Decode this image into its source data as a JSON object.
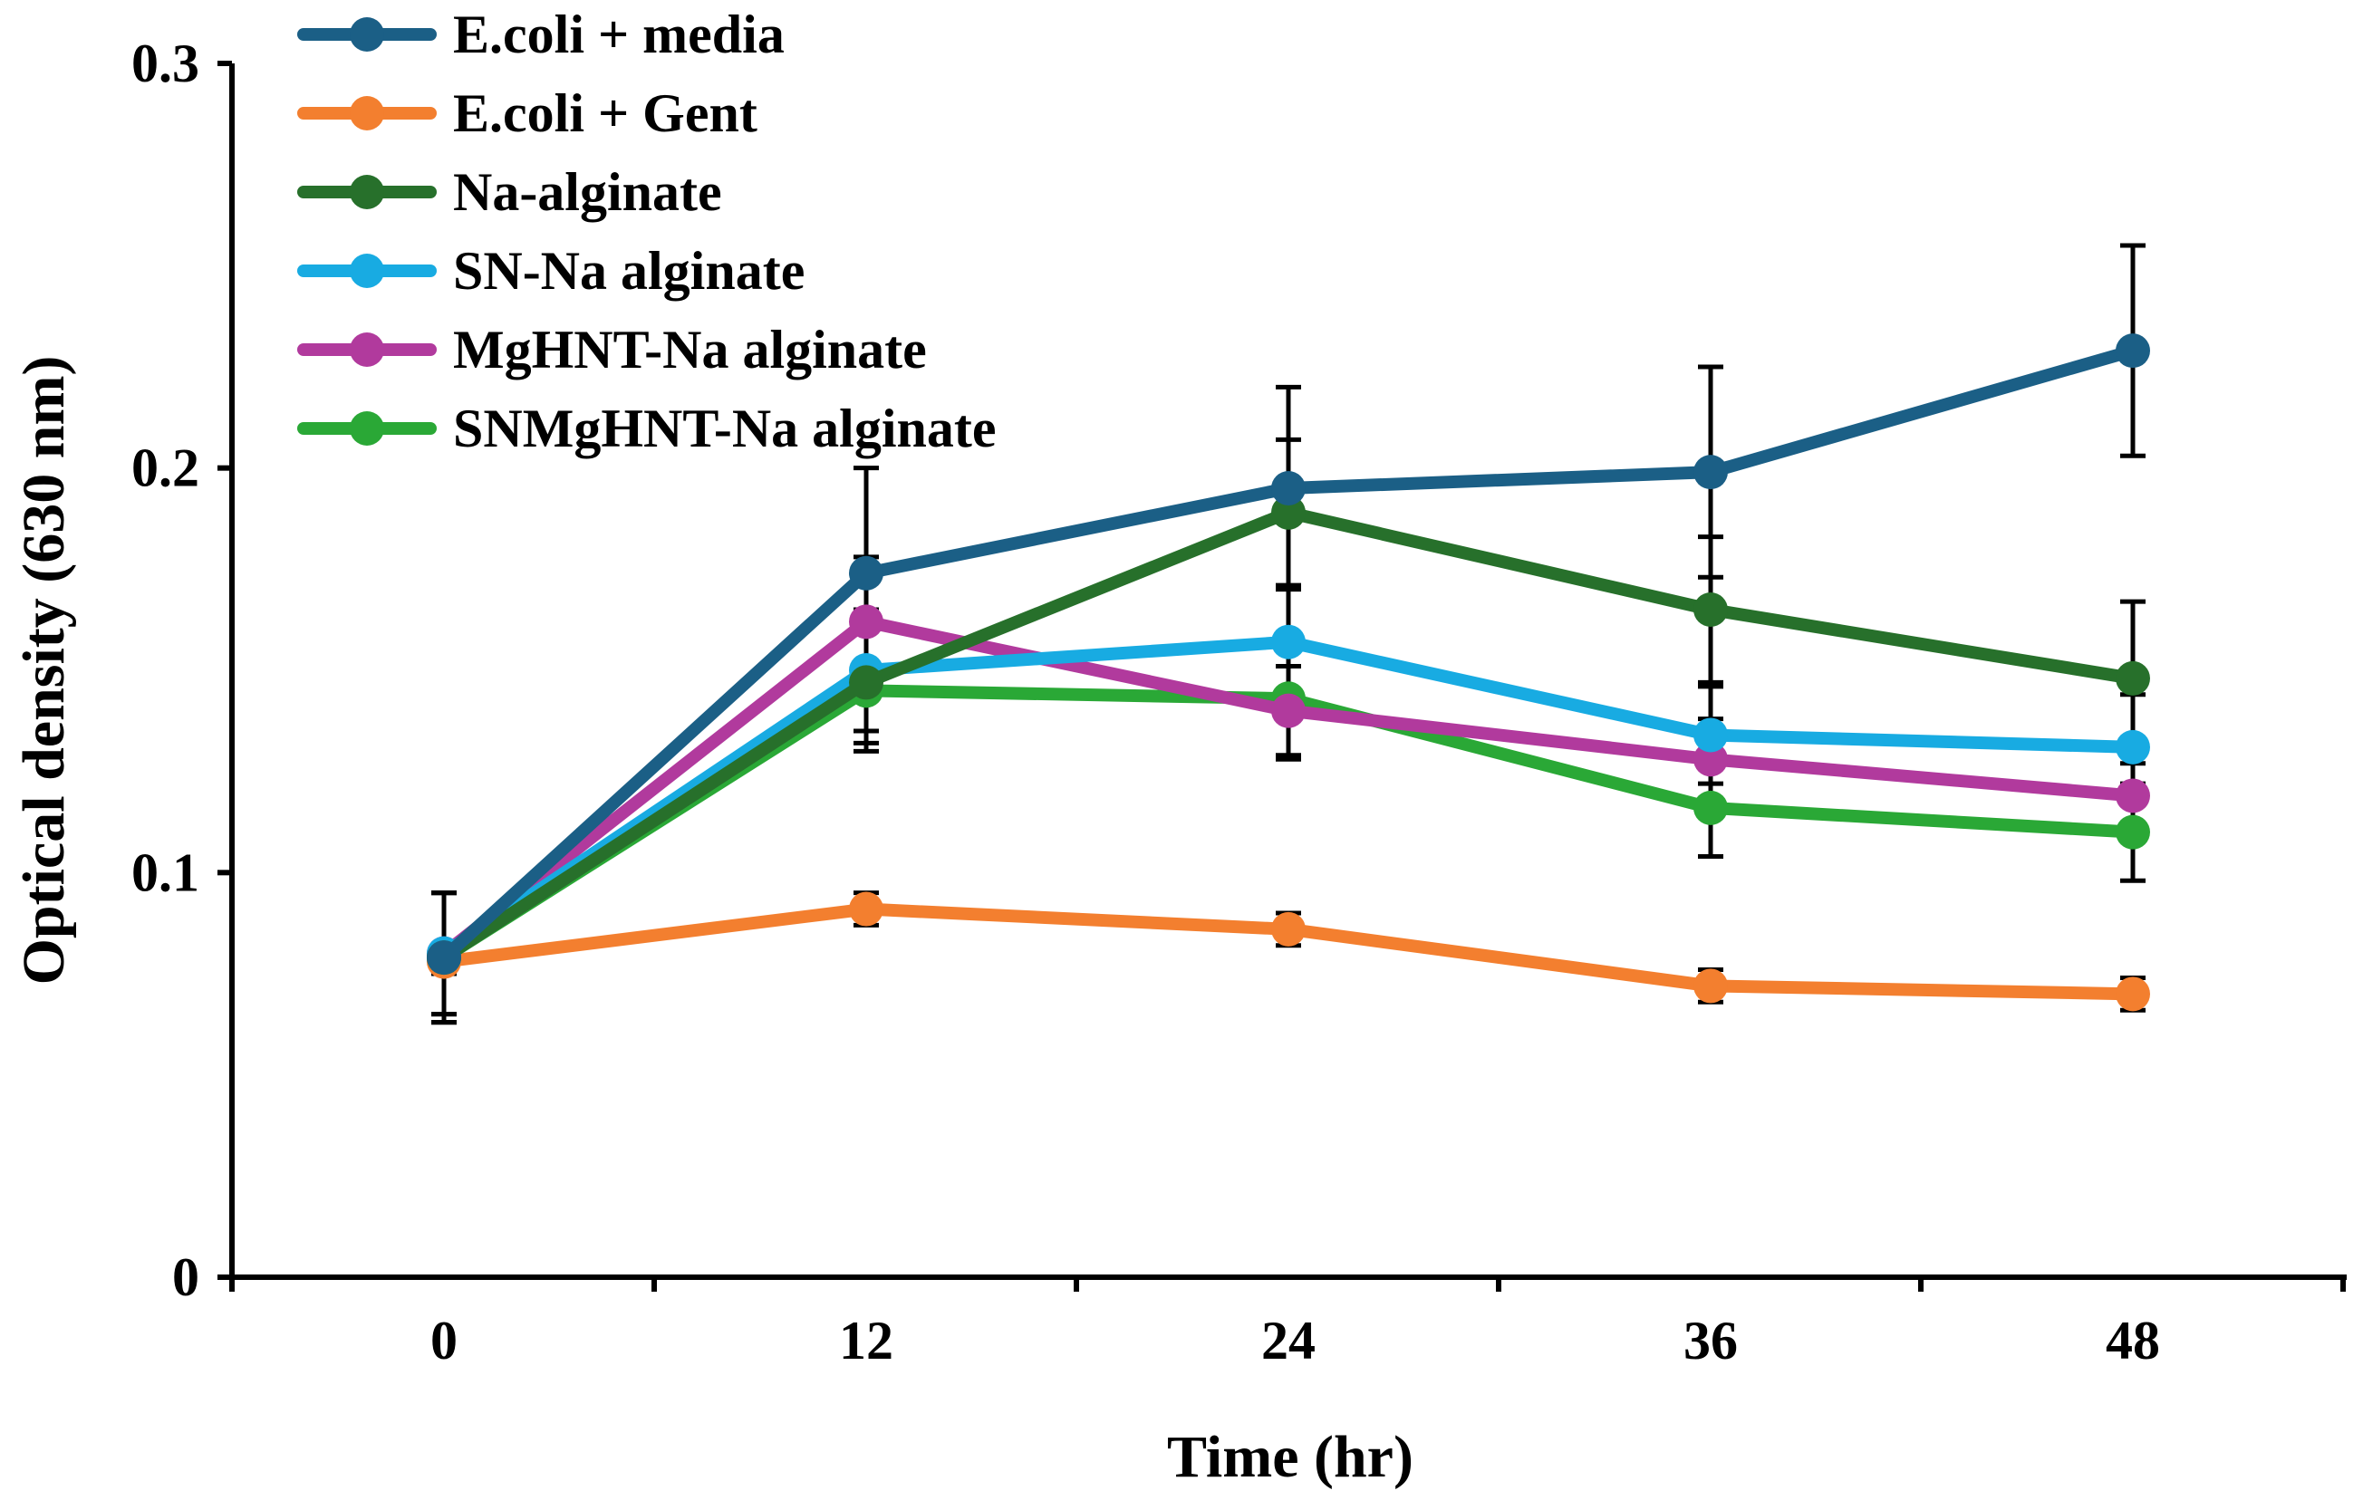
{
  "chart_data": {
    "type": "line",
    "title": "",
    "xlabel": "Time (hr)",
    "ylabel": "Optical density (630 nm)",
    "x": [
      0,
      12,
      24,
      36,
      48
    ],
    "x_tick_labels": [
      "0",
      "12",
      "24",
      "36",
      "48"
    ],
    "y_tick_labels": [
      "0",
      "0.1",
      "0.2",
      "0.3"
    ],
    "y_ticks": [
      0,
      0.1,
      0.2,
      0.3
    ],
    "ylim": [
      0,
      0.3
    ],
    "grid": false,
    "legend_position": "top-left",
    "series": [
      {
        "name": "E.coli + media",
        "color": "#1b5f86",
        "values": [
          0.079,
          0.174,
          0.195,
          0.199,
          0.229
        ],
        "errors": [
          0.016,
          0.026,
          0.025,
          0.026,
          0.026
        ]
      },
      {
        "name": "E.coli + Gent",
        "color": "#f37f2f",
        "values": [
          0.078,
          0.091,
          0.086,
          0.072,
          0.07
        ],
        "errors": [
          0.003,
          0.004,
          0.004,
          0.004,
          0.004
        ]
      },
      {
        "name": "Na-alginate",
        "color": "#27702b",
        "values": [
          0.079,
          0.147,
          0.189,
          0.165,
          0.148
        ],
        "errors": [
          0.016,
          0.015,
          0.018,
          0.018,
          0.019
        ]
      },
      {
        "name": "SN-Na alginate",
        "color": "#18abe2",
        "values": [
          0.08,
          0.15,
          0.157,
          0.134,
          0.131
        ],
        "errors": [
          0.015,
          0.015,
          0.014,
          0.012,
          0.013
        ]
      },
      {
        "name": "MgHNT-Na alginate",
        "color": "#b13a9d",
        "values": [
          0.08,
          0.162,
          0.14,
          0.128,
          0.119
        ],
        "errors": [
          0.015,
          0.016,
          0.011,
          0.01,
          0.008
        ]
      },
      {
        "name": "SNMgHNT-Na alginate",
        "color": "#2aa836",
        "values": [
          0.079,
          0.145,
          0.143,
          0.116,
          0.11
        ],
        "errors": [
          0.016,
          0.015,
          0.015,
          0.012,
          0.012
        ]
      }
    ]
  }
}
